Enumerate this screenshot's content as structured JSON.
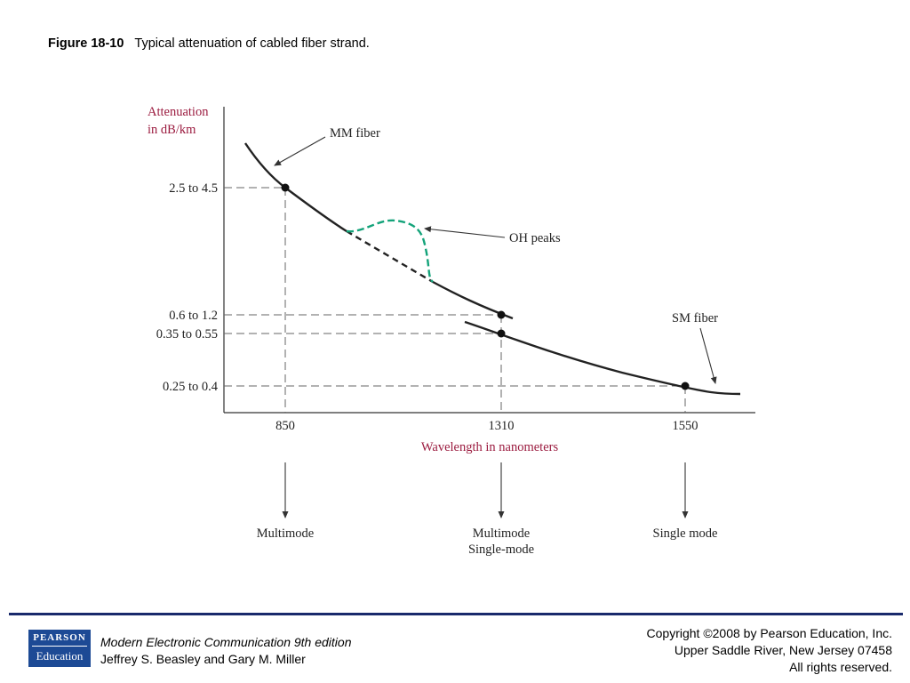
{
  "caption": {
    "figure_number": "Figure 18-10",
    "text": "Typical attenuation of cabled fiber strand."
  },
  "diagram": {
    "y_axis_label_line1": "Attenuation",
    "y_axis_label_line2": "in dB/km",
    "x_axis_label": "Wavelength in nanometers",
    "y_ticks": [
      "2.5 to 4.5",
      "0.6 to 1.2",
      "0.35 to 0.55",
      "0.25 to 0.4"
    ],
    "x_ticks": [
      "850",
      "1310",
      "1550"
    ],
    "annotations": {
      "mm_fiber": "MM fiber",
      "oh_peaks": "OH peaks",
      "sm_fiber": "SM fiber"
    },
    "modes": {
      "m850": "Multimode",
      "m1310_line1": "Multimode",
      "m1310_line2": "Single-mode",
      "m1550": "Single mode"
    },
    "colors": {
      "axis_label": "#9b1b3f",
      "oh_peaks": "#14a37a",
      "curve": "#222222"
    }
  },
  "footer": {
    "logo_line1": "PEARSON",
    "logo_line2": "Education",
    "book_title": "Modern Electronic Communication 9th edition",
    "authors": "Jeffrey S. Beasley and Gary M. Miller",
    "copyright_line1": "Copyright ©2008 by Pearson Education, Inc.",
    "copyright_line2": "Upper Saddle River, New Jersey 07458",
    "copyright_line3": "All rights reserved."
  }
}
